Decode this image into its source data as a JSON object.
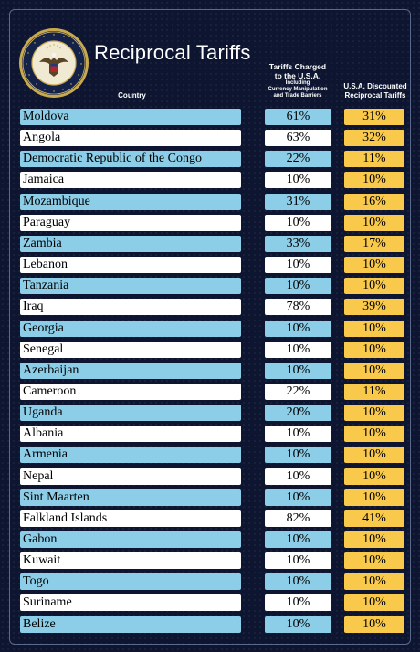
{
  "header": {
    "title": "Reciprocal Tariffs",
    "country_label": "Country",
    "charged_label_1": "Tariffs Charged",
    "charged_label_2": "to the U.S.A.",
    "charged_small_1": "Including",
    "charged_small_2": "Currency Manipulation",
    "charged_small_3": "and Trade Barriers",
    "discounted_label_1": "U.S.A. Discounted",
    "discounted_label_2": "Reciprocal Tariffs"
  },
  "colors": {
    "background": "#0d1530",
    "row_blue": "#8ccde8",
    "row_white": "#ffffff",
    "discount_yellow": "#f9c94c"
  },
  "chart_data": {
    "type": "table",
    "columns": [
      "Country",
      "Tariffs Charged to the U.S.A.",
      "U.S.A. Discounted Reciprocal Tariffs"
    ],
    "rows": [
      {
        "country": "Moldova",
        "charged": "61%",
        "discounted": "31%"
      },
      {
        "country": "Angola",
        "charged": "63%",
        "discounted": "32%"
      },
      {
        "country": "Democratic Republic of the Congo",
        "charged": "22%",
        "discounted": "11%"
      },
      {
        "country": "Jamaica",
        "charged": "10%",
        "discounted": "10%"
      },
      {
        "country": "Mozambique",
        "charged": "31%",
        "discounted": "16%"
      },
      {
        "country": "Paraguay",
        "charged": "10%",
        "discounted": "10%"
      },
      {
        "country": "Zambia",
        "charged": "33%",
        "discounted": "17%"
      },
      {
        "country": "Lebanon",
        "charged": "10%",
        "discounted": "10%"
      },
      {
        "country": "Tanzania",
        "charged": "10%",
        "discounted": "10%"
      },
      {
        "country": "Iraq",
        "charged": "78%",
        "discounted": "39%"
      },
      {
        "country": "Georgia",
        "charged": "10%",
        "discounted": "10%"
      },
      {
        "country": "Senegal",
        "charged": "10%",
        "discounted": "10%"
      },
      {
        "country": "Azerbaijan",
        "charged": "10%",
        "discounted": "10%"
      },
      {
        "country": "Cameroon",
        "charged": "22%",
        "discounted": "11%"
      },
      {
        "country": "Uganda",
        "charged": "20%",
        "discounted": "10%"
      },
      {
        "country": "Albania",
        "charged": "10%",
        "discounted": "10%"
      },
      {
        "country": "Armenia",
        "charged": "10%",
        "discounted": "10%"
      },
      {
        "country": "Nepal",
        "charged": "10%",
        "discounted": "10%"
      },
      {
        "country": "Sint Maarten",
        "charged": "10%",
        "discounted": "10%"
      },
      {
        "country": "Falkland Islands",
        "charged": "82%",
        "discounted": "41%"
      },
      {
        "country": "Gabon",
        "charged": "10%",
        "discounted": "10%"
      },
      {
        "country": "Kuwait",
        "charged": "10%",
        "discounted": "10%"
      },
      {
        "country": "Togo",
        "charged": "10%",
        "discounted": "10%"
      },
      {
        "country": "Suriname",
        "charged": "10%",
        "discounted": "10%"
      },
      {
        "country": "Belize",
        "charged": "10%",
        "discounted": "10%"
      }
    ]
  }
}
